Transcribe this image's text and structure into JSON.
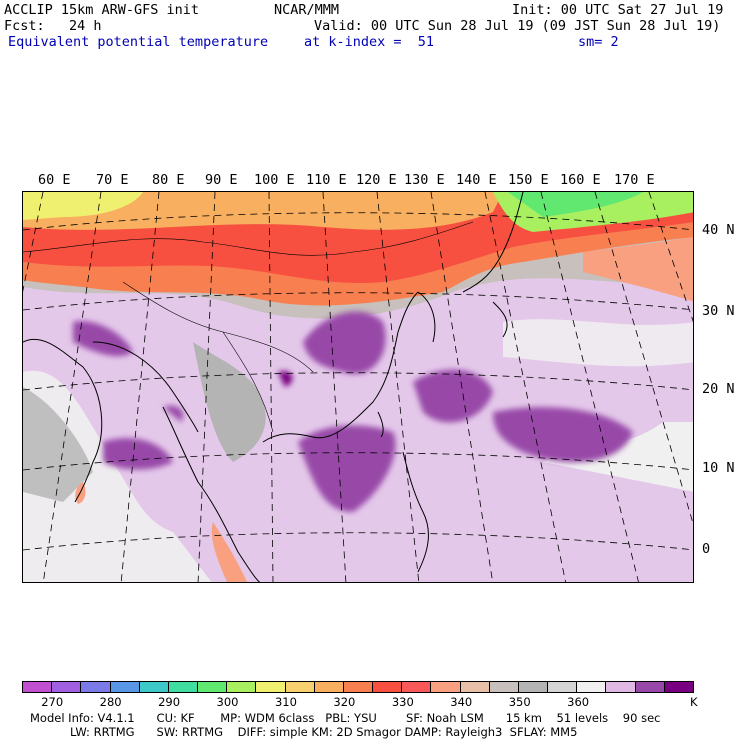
{
  "header": {
    "line1_left": "ACCLIP 15km ARW-GFS init",
    "line1_center": "NCAR/MMM",
    "line1_right": "Init: 00 UTC Sat 27 Jul 19",
    "line2_left": "Fcst:   24 h",
    "line2_right": "Valid: 00 UTC Sun 28 Jul 19 (09 JST Sun 28 Jul 19)",
    "line3_left": "Equivalent potential temperature",
    "line3_center": "at k-index =  51",
    "line3_right": "sm= 2"
  },
  "map": {
    "longitude_labels": [
      "60 E",
      "70 E",
      "80 E",
      "90 E",
      "100 E",
      "110 E",
      "120 E",
      "130 E",
      "140 E",
      "150 E",
      "160 E",
      "170 E"
    ],
    "latitude_labels": [
      "40 N",
      "30 N",
      "20 N",
      "10 N",
      "0"
    ]
  },
  "colorbar": {
    "colors": [
      "#c050d0",
      "#a060e0",
      "#7a7ae8",
      "#5a96e6",
      "#3ec8c8",
      "#40dca0",
      "#60e870",
      "#a8f060",
      "#f0f070",
      "#f8d070",
      "#f8b060",
      "#f88050",
      "#f85040",
      "#f85858",
      "#f8a080",
      "#e8c0a8",
      "#c8c0bc",
      "#b4b4b4",
      "#d4d4d4",
      "#f0f0f0",
      "#e0b8e4",
      "#9848a8",
      "#780080"
    ],
    "tick_labels": [
      "270",
      "280",
      "290",
      "300",
      "310",
      "320",
      "330",
      "340",
      "350",
      "360"
    ],
    "unit": "K"
  },
  "model_info": {
    "line1": "Model Info: V4.1.1      CU: KF       MP: WDM 6class   PBL: YSU        SF: Noah LSM      15 km    51 levels    90 sec",
    "line2": "LW: RRTMG      SW: RRTMG    DIFF: simple KM: 2D Smagor DAMP: Rayleigh3  SFLAY: MM5"
  }
}
